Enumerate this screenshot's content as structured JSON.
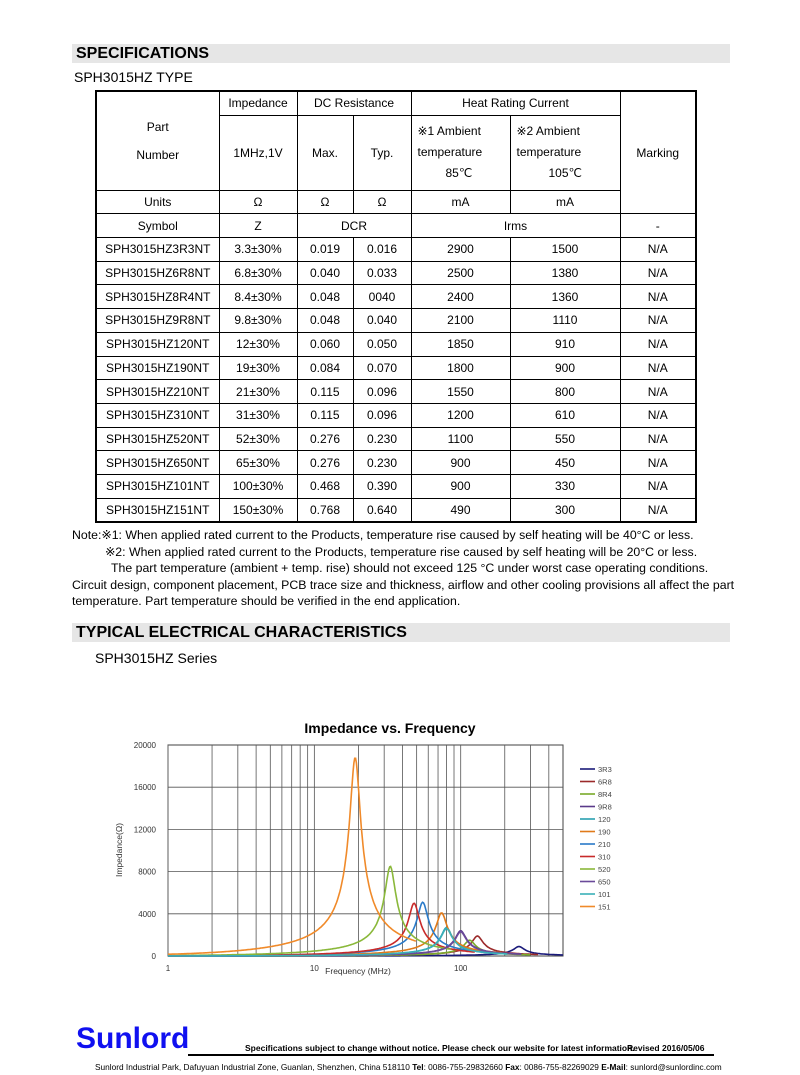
{
  "specifications": {
    "heading": "SPECIFICATIONS",
    "type": "SPH3015HZ TYPE",
    "header": {
      "part_number": [
        "Part",
        "Number"
      ],
      "impedance": "Impedance",
      "impedance_cond": "1MHz,1V",
      "dc_resistance": "DC Resistance",
      "max": "Max.",
      "typ": "Typ.",
      "heat_rating": "Heat Rating Current",
      "ambient1": [
        "※1 Ambient",
        "temperature",
        "85℃"
      ],
      "ambient2": [
        "※2 Ambient",
        "temperature",
        "105℃"
      ],
      "marking": "Marking",
      "units_label": "Units",
      "units": [
        "Ω",
        "Ω",
        "Ω",
        "mA",
        "mA"
      ],
      "symbol_label": "Symbol",
      "symbols": [
        "Z",
        "DCR",
        "Irms",
        "-"
      ]
    },
    "rows": [
      [
        "SPH3015HZ3R3NT",
        "3.3±30%",
        "0.019",
        "0.016",
        "2900",
        "1500",
        "N/A"
      ],
      [
        "SPH3015HZ6R8NT",
        "6.8±30%",
        "0.040",
        "0.033",
        "2500",
        "1380",
        "N/A"
      ],
      [
        "SPH3015HZ8R4NT",
        "8.4±30%",
        "0.048",
        "0040",
        "2400",
        "1360",
        "N/A"
      ],
      [
        "SPH3015HZ9R8NT",
        "9.8±30%",
        "0.048",
        "0.040",
        "2100",
        "1110",
        "N/A"
      ],
      [
        "SPH3015HZ120NT",
        "12±30%",
        "0.060",
        "0.050",
        "1850",
        "910",
        "N/A"
      ],
      [
        "SPH3015HZ190NT",
        "19±30%",
        "0.084",
        "0.070",
        "1800",
        "900",
        "N/A"
      ],
      [
        "SPH3015HZ210NT",
        "21±30%",
        "0.115",
        "0.096",
        "1550",
        "800",
        "N/A"
      ],
      [
        "SPH3015HZ310NT",
        "31±30%",
        "0.115",
        "0.096",
        "1200",
        "610",
        "N/A"
      ],
      [
        "SPH3015HZ520NT",
        "52±30%",
        "0.276",
        "0.230",
        "1100",
        "550",
        "N/A"
      ],
      [
        "SPH3015HZ650NT",
        "65±30%",
        "0.276",
        "0.230",
        "900",
        "450",
        "N/A"
      ],
      [
        "SPH3015HZ101NT",
        "100±30%",
        "0.468",
        "0.390",
        "900",
        "330",
        "N/A"
      ],
      [
        "SPH3015HZ151NT",
        "150±30%",
        "0.768",
        "0.640",
        "490",
        "300",
        "N/A"
      ]
    ]
  },
  "notes": [
    "Note:※1: When applied rated current to the Products, temperature rise caused by self heating will be 40°C or less.",
    "※2: When applied rated current to the Products, temperature rise caused by self heating will be 20°C or less.",
    "The part temperature (ambient + temp. rise) should not exceed 125 °C under worst case operating conditions.",
    "Circuit design, component placement, PCB trace size and thickness, airflow and other cooling provisions all affect the part",
    "temperature. Part temperature should be verified in the end application."
  ],
  "typical": {
    "heading": "TYPICAL    ELECTRICAL CHARACTERISTICS",
    "series": "SPH3015HZ Series"
  },
  "chart_data": {
    "type": "line",
    "title": "Impedance vs. Frequency",
    "xlabel": "Frequency (MHz)",
    "ylabel": "Impedance(Ω)",
    "xscale": "log",
    "xlim": [
      1,
      500
    ],
    "xticks": [
      "1",
      "10",
      "100"
    ],
    "ylim": [
      0,
      20000
    ],
    "yticks": [
      "0",
      "4000",
      "8000",
      "12000",
      "16000",
      "20000"
    ],
    "grid": true,
    "legend": "right",
    "series": [
      {
        "name": "3R3",
        "color": "#1a1a7a",
        "peak_freq_mhz": 250,
        "peak_impedance": 900
      },
      {
        "name": "6R8",
        "color": "#9b2a2a",
        "peak_freq_mhz": 130,
        "peak_impedance": 1900
      },
      {
        "name": "8R4",
        "color": "#7aaa2a",
        "peak_freq_mhz": 115,
        "peak_impedance": 1500
      },
      {
        "name": "9R8",
        "color": "#5a3a8a",
        "peak_freq_mhz": 100,
        "peak_impedance": 2400
      },
      {
        "name": "120",
        "color": "#2aa0b0",
        "peak_freq_mhz": 80,
        "peak_impedance": 2700
      },
      {
        "name": "190",
        "color": "#e07a1a",
        "peak_freq_mhz": 74,
        "peak_impedance": 4100
      },
      {
        "name": "210",
        "color": "#2a7ac8",
        "peak_freq_mhz": 55,
        "peak_impedance": 5100
      },
      {
        "name": "310",
        "color": "#c82a2a",
        "peak_freq_mhz": 48,
        "peak_impedance": 5000
      },
      {
        "name": "520",
        "color": "#8ab83a",
        "peak_freq_mhz": 33,
        "peak_impedance": 8500
      },
      {
        "name": "650",
        "color": "#6a4a9a",
        "peak_freq_mhz": 100,
        "peak_impedance": 2300
      },
      {
        "name": "101",
        "color": "#3ab0b8",
        "peak_freq_mhz": 80,
        "peak_impedance": 2600
      },
      {
        "name": "151",
        "color": "#f08a2a",
        "peak_freq_mhz": 19,
        "peak_impedance": 18800
      }
    ]
  },
  "footer": {
    "logo": "Sunlord",
    "notice": "Specifications subject to change without notice. Please check our website for latest information.",
    "revised": "Revised 2016/05/06",
    "address": "Sunlord Industrial Park, Dafuyuan Industrial Zone, Guanlan, Shenzhen, China 518110 ",
    "tel_label": "Tel",
    "tel": ": 0086-755-29832660 ",
    "fax_label": "Fax",
    "fax": ": 0086-755-82269029 ",
    "email_label": "E-Mail",
    "email": ": sunlord@sunlordinc.com"
  }
}
